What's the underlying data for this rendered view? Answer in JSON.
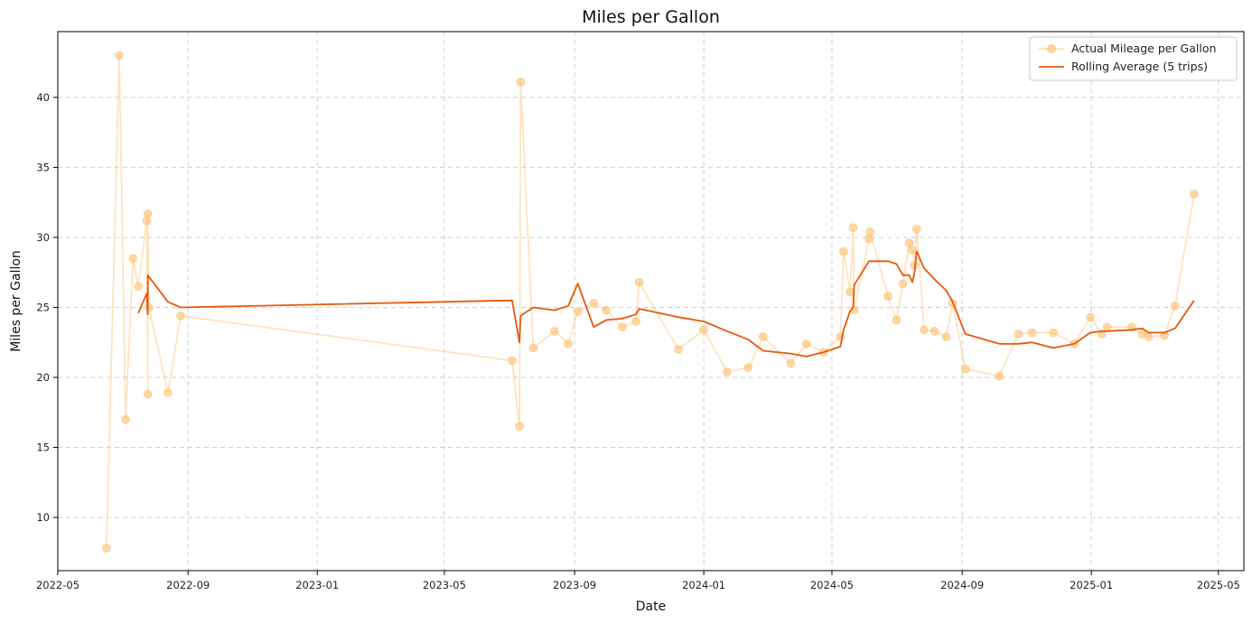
{
  "chart_data": {
    "type": "line",
    "title": "Miles per Gallon",
    "xlabel": "Date",
    "ylabel": "Miles per Gallon",
    "xlim": [
      "2022-05-01",
      "2025-05-25"
    ],
    "ylim": [
      6.2,
      44.7
    ],
    "x_ticks": [
      "2022-05",
      "2022-09",
      "2023-01",
      "2023-05",
      "2023-09",
      "2024-01",
      "2024-05",
      "2024-09",
      "2025-01",
      "2025-05"
    ],
    "y_ticks": [
      10,
      15,
      20,
      25,
      30,
      35,
      40
    ],
    "grid": true,
    "legend_position": "top-right",
    "colors": {
      "actual": "#fdbf6f",
      "rolling": "#e8580a"
    },
    "series": [
      {
        "name": "Actual Mileage per Gallon",
        "style": "line-markers",
        "x": [
          "2022-06-16",
          "2022-06-28",
          "2022-07-04",
          "2022-07-11",
          "2022-07-16",
          "2022-07-24",
          "2022-07-25",
          "2022-07-25",
          "2022-07-26",
          "2022-08-13",
          "2022-08-25",
          "2023-07-04",
          "2023-07-11",
          "2023-07-12",
          "2023-07-24",
          "2023-08-13",
          "2023-08-26",
          "2023-09-04",
          "2023-09-19",
          "2023-10-01",
          "2023-10-16",
          "2023-10-29",
          "2023-11-01",
          "2023-12-08",
          "2024-01-01",
          "2024-01-23",
          "2024-02-12",
          "2024-02-26",
          "2024-03-23",
          "2024-04-07",
          "2024-04-23",
          "2024-05-09",
          "2024-05-12",
          "2024-05-18",
          "2024-05-21",
          "2024-05-22",
          "2024-06-05",
          "2024-06-06",
          "2024-06-23",
          "2024-07-01",
          "2024-07-07",
          "2024-07-13",
          "2024-07-16",
          "2024-07-18",
          "2024-07-20",
          "2024-07-27",
          "2024-08-06",
          "2024-08-17",
          "2024-08-23",
          "2024-09-04",
          "2024-10-06",
          "2024-10-24",
          "2024-11-06",
          "2024-11-26",
          "2024-12-16",
          "2024-12-31",
          "2025-01-11",
          "2025-01-16",
          "2025-02-08",
          "2025-02-18",
          "2025-02-24",
          "2025-03-11",
          "2025-03-21",
          "2025-04-08"
        ],
        "y": [
          7.8,
          43.0,
          17.0,
          28.5,
          26.5,
          31.2,
          18.8,
          31.7,
          25.0,
          18.9,
          24.4,
          21.2,
          16.5,
          41.1,
          22.1,
          23.3,
          22.4,
          24.7,
          25.3,
          24.8,
          23.6,
          24.0,
          26.8,
          22.0,
          23.4,
          20.4,
          20.7,
          22.9,
          21.0,
          22.4,
          21.8,
          22.9,
          29.0,
          26.1,
          30.7,
          24.8,
          29.9,
          30.4,
          25.8,
          24.1,
          26.7,
          29.6,
          29.1,
          28.0,
          30.6,
          23.4,
          23.3,
          22.9,
          25.3,
          20.6,
          20.1,
          23.1,
          23.2,
          23.2,
          22.4,
          24.3,
          23.1,
          23.6,
          23.6,
          23.1,
          22.9,
          23.0,
          25.1,
          33.1
        ]
      },
      {
        "name": "Rolling Average (5 trips)",
        "style": "line",
        "x": [
          "2022-07-16",
          "2022-07-24",
          "2022-07-25",
          "2022-07-25",
          "2022-07-26",
          "2022-08-13",
          "2022-08-25",
          "2023-07-04",
          "2023-07-11",
          "2023-07-12",
          "2023-07-24",
          "2023-08-13",
          "2023-08-26",
          "2023-09-04",
          "2023-09-19",
          "2023-10-01",
          "2023-10-16",
          "2023-10-29",
          "2023-11-01",
          "2023-12-08",
          "2024-01-01",
          "2024-01-23",
          "2024-02-12",
          "2024-02-26",
          "2024-03-23",
          "2024-04-07",
          "2024-04-23",
          "2024-05-09",
          "2024-05-12",
          "2024-05-18",
          "2024-05-21",
          "2024-05-22",
          "2024-06-05",
          "2024-06-06",
          "2024-06-23",
          "2024-07-01",
          "2024-07-07",
          "2024-07-13",
          "2024-07-16",
          "2024-07-18",
          "2024-07-20",
          "2024-07-27",
          "2024-08-06",
          "2024-08-17",
          "2024-08-23",
          "2024-09-04",
          "2024-10-06",
          "2024-10-24",
          "2024-11-06",
          "2024-11-26",
          "2024-12-16",
          "2024-12-31",
          "2025-01-11",
          "2025-01-16",
          "2025-02-08",
          "2025-02-18",
          "2025-02-24",
          "2025-03-11",
          "2025-03-21",
          "2025-04-08"
        ],
        "y": [
          24.6,
          26.0,
          24.5,
          27.3,
          27.2,
          25.4,
          25.0,
          25.5,
          22.5,
          24.4,
          25.0,
          24.8,
          25.1,
          26.7,
          23.6,
          24.1,
          24.2,
          24.5,
          24.9,
          24.3,
          24.0,
          23.3,
          22.7,
          21.9,
          21.7,
          21.5,
          21.8,
          22.2,
          23.4,
          24.7,
          25.0,
          26.6,
          28.3,
          28.3,
          28.3,
          28.1,
          27.3,
          27.3,
          26.8,
          27.5,
          29.0,
          27.8,
          27.0,
          26.2,
          25.4,
          23.1,
          22.4,
          22.4,
          22.5,
          22.1,
          22.4,
          23.2,
          23.3,
          23.3,
          23.4,
          23.5,
          23.2,
          23.2,
          23.5,
          25.5
        ]
      }
    ]
  }
}
